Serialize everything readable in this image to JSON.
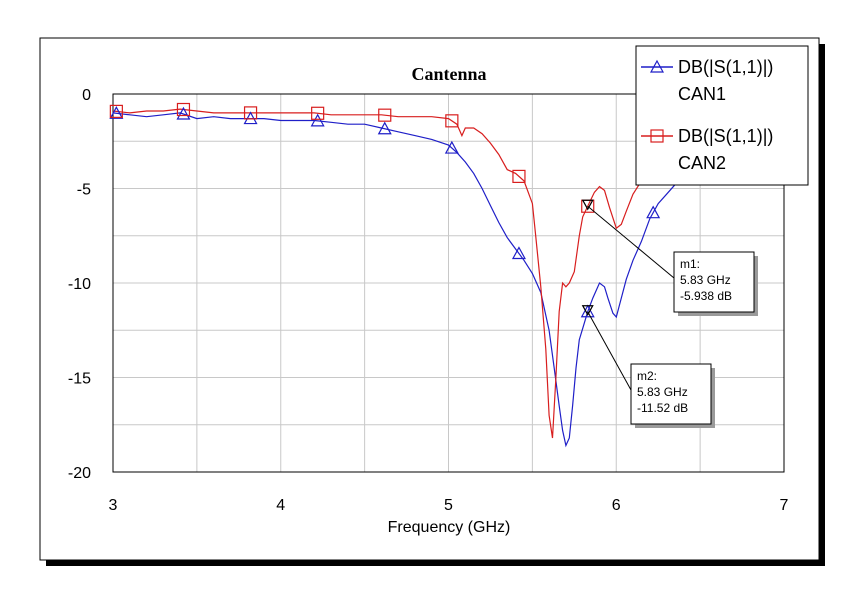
{
  "chart_data": {
    "type": "line",
    "title": "Cantenna",
    "xlabel": "Frequency (GHz)",
    "ylabel": "",
    "xlim": [
      3,
      7
    ],
    "ylim": [
      -20,
      0
    ],
    "xticks": [
      "3",
      "4",
      "5",
      "6",
      "7"
    ],
    "yticks": [
      "0",
      "-5",
      "-10",
      "-15",
      "-20"
    ],
    "grid": true,
    "legend_position": "top-right",
    "series": [
      {
        "name": "DB(|S(1,1)|)\nCAN1",
        "label_line1": "DB(|S(1,1)|)",
        "label_line2": "CAN1",
        "color": "#1f1fc8",
        "marker": "triangle",
        "x": [
          3.0,
          3.1,
          3.2,
          3.3,
          3.4,
          3.5,
          3.6,
          3.7,
          3.8,
          3.9,
          4.0,
          4.1,
          4.2,
          4.3,
          4.4,
          4.5,
          4.6,
          4.7,
          4.8,
          4.9,
          5.0,
          5.05,
          5.1,
          5.15,
          5.2,
          5.25,
          5.3,
          5.35,
          5.4,
          5.45,
          5.5,
          5.55,
          5.6,
          5.63,
          5.66,
          5.68,
          5.7,
          5.72,
          5.74,
          5.76,
          5.78,
          5.8,
          5.83,
          5.86,
          5.9,
          5.93,
          5.95,
          5.98,
          6.0,
          6.03,
          6.06,
          6.1,
          6.15,
          6.2,
          6.25,
          6.3,
          6.35
        ],
        "y": [
          -1.0,
          -1.1,
          -1.2,
          -1.1,
          -1.0,
          -1.3,
          -1.2,
          -1.3,
          -1.3,
          -1.3,
          -1.4,
          -1.4,
          -1.4,
          -1.5,
          -1.6,
          -1.6,
          -1.8,
          -2.0,
          -2.2,
          -2.4,
          -2.7,
          -3.1,
          -3.6,
          -4.2,
          -5.0,
          -5.9,
          -6.8,
          -7.6,
          -8.2,
          -8.8,
          -9.5,
          -10.5,
          -12.5,
          -14.5,
          -16.5,
          -17.8,
          -18.6,
          -18.2,
          -16.5,
          -14.5,
          -13.0,
          -12.4,
          -11.52,
          -10.8,
          -10.0,
          -10.2,
          -10.8,
          -11.6,
          -11.8,
          -10.8,
          -9.8,
          -8.8,
          -7.8,
          -6.6,
          -5.8,
          -5.3,
          -4.8
        ]
      },
      {
        "name": "DB(|S(1,1)|)\nCAN2",
        "label_line1": "DB(|S(1,1)|)",
        "label_line2": "CAN2",
        "color": "#d81e1e",
        "marker": "square",
        "x": [
          3.0,
          3.1,
          3.2,
          3.3,
          3.4,
          3.5,
          3.6,
          3.7,
          3.8,
          3.9,
          4.0,
          4.1,
          4.2,
          4.3,
          4.4,
          4.5,
          4.6,
          4.7,
          4.8,
          4.9,
          5.0,
          5.05,
          5.08,
          5.1,
          5.15,
          5.2,
          5.25,
          5.3,
          5.35,
          5.4,
          5.45,
          5.5,
          5.52,
          5.55,
          5.58,
          5.6,
          5.62,
          5.64,
          5.66,
          5.68,
          5.7,
          5.72,
          5.75,
          5.78,
          5.8,
          5.83,
          5.87,
          5.9,
          5.93,
          5.96,
          6.0,
          6.03,
          6.06,
          6.1,
          6.15,
          6.2,
          6.25
        ],
        "y": [
          -0.9,
          -1.0,
          -0.9,
          -0.9,
          -0.8,
          -0.9,
          -1.0,
          -1.0,
          -1.0,
          -1.0,
          -1.0,
          -1.0,
          -1.0,
          -1.1,
          -1.1,
          -1.1,
          -1.1,
          -1.2,
          -1.2,
          -1.2,
          -1.3,
          -1.6,
          -2.2,
          -1.8,
          -1.8,
          -2.1,
          -2.6,
          -3.2,
          -4.0,
          -4.2,
          -4.6,
          -5.8,
          -7.5,
          -10.2,
          -13.5,
          -17.0,
          -18.2,
          -15.0,
          -11.5,
          -10.0,
          -10.2,
          -10.0,
          -9.4,
          -7.5,
          -6.5,
          -5.938,
          -5.2,
          -4.9,
          -5.1,
          -6.0,
          -7.1,
          -6.9,
          -6.2,
          -5.3,
          -4.6,
          -4.3,
          -4.1
        ]
      }
    ],
    "series_markers": [
      {
        "series": 0,
        "x": [
          3.02,
          3.42,
          3.82,
          4.22,
          4.62,
          5.02,
          5.42,
          5.83,
          6.22
        ]
      },
      {
        "series": 1,
        "x": [
          3.02,
          3.42,
          3.82,
          4.22,
          4.62,
          5.02,
          5.42,
          5.83
        ]
      }
    ],
    "markers": [
      {
        "id": "m1",
        "line1": "m1:",
        "line2": "5.83 GHz",
        "line3": "-5.938 dB",
        "x": 5.83,
        "y": -5.938,
        "series": 1
      },
      {
        "id": "m2",
        "line1": "m2:",
        "line2": "5.83 GHz",
        "line3": "-11.52 dB",
        "x": 5.83,
        "y": -11.52,
        "series": 0
      }
    ]
  }
}
